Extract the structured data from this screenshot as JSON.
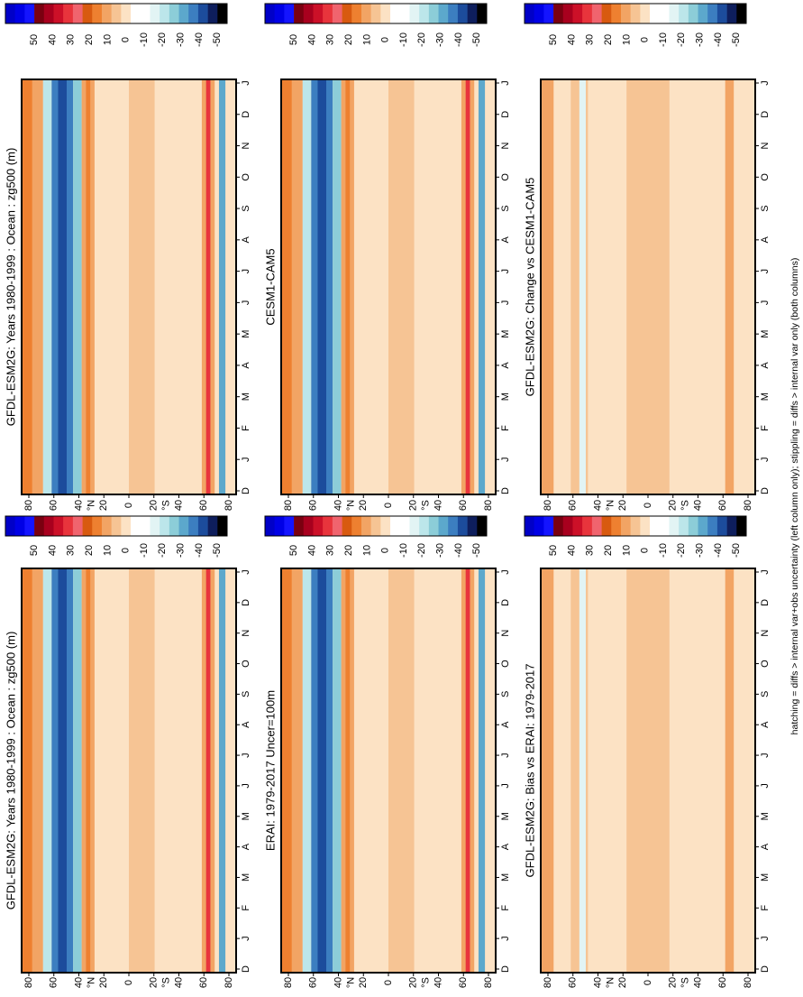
{
  "panels": [
    {
      "title": "GFDL-ESM2G: Years 1980-1999 : Ocean : zg500 (m)"
    },
    {
      "title": "CESM1-CAM5"
    },
    {
      "title": "GFDL-ESM2G: Change vs CESM1-CAM5"
    },
    {
      "title": "GFDL-ESM2G: Years 1980-1999 : Ocean : zg500 (m)"
    },
    {
      "title": "ERAI: 1979-2017 Uncer=100m"
    },
    {
      "title": "GFDL-ESM2G: Bias vs ERAI: 1979-2017"
    }
  ],
  "months": [
    "D",
    "J",
    "F",
    "M",
    "A",
    "M",
    "J",
    "J",
    "A",
    "S",
    "O",
    "N",
    "D",
    "J"
  ],
  "latitudes": [
    "80",
    "60",
    "40",
    "20",
    "0",
    "20",
    "40",
    "60",
    "80"
  ],
  "hemispheres": [
    "°N",
    "°S"
  ],
  "colorbar": {
    "labels": [
      50,
      40,
      30,
      20,
      10,
      0,
      -10,
      -20,
      -30,
      -40,
      -50
    ],
    "colors": [
      "#0000c8",
      "#0000e6",
      "#1414ff",
      "#7a0010",
      "#a8001e",
      "#cc1028",
      "#e8343c",
      "#f0646e",
      "#d85a10",
      "#ee8030",
      "#f2a464",
      "#f6c494",
      "#fce2c4",
      "#ffffff",
      "#ffffff",
      "#e2f4f4",
      "#bce6ea",
      "#8ccdd8",
      "#5ca8cc",
      "#3c7ec0",
      "#1c4c9c",
      "#0e1e5c",
      "#000000"
    ]
  },
  "footnote": "hatching = diffs > internal var+obs uncertainty (left column only); stippling = diffs > internal var only (both columns)"
}
